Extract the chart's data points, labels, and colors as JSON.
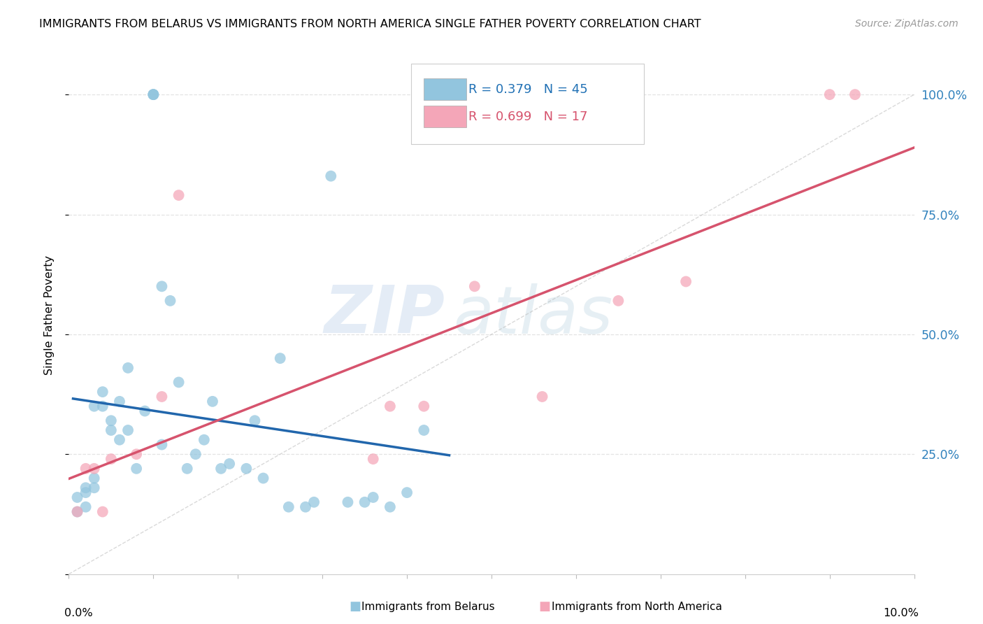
{
  "title": "IMMIGRANTS FROM BELARUS VS IMMIGRANTS FROM NORTH AMERICA SINGLE FATHER POVERTY CORRELATION CHART",
  "source": "Source: ZipAtlas.com",
  "ylabel": "Single Father Poverty",
  "watermark_zip": "ZIP",
  "watermark_atlas": "atlas",
  "legend_blue_r": "R = 0.379",
  "legend_blue_n": "N = 45",
  "legend_pink_r": "R = 0.699",
  "legend_pink_n": "N = 17",
  "blue_color": "#92c5de",
  "pink_color": "#f4a6b8",
  "blue_line_color": "#2166ac",
  "pink_line_color": "#d6536d",
  "background_color": "#ffffff",
  "grid_color": "#e0e0e0",
  "blue_points_x": [
    0.001,
    0.001,
    0.002,
    0.002,
    0.002,
    0.003,
    0.003,
    0.003,
    0.004,
    0.004,
    0.005,
    0.005,
    0.006,
    0.006,
    0.007,
    0.007,
    0.008,
    0.009,
    0.01,
    0.01,
    0.01,
    0.011,
    0.011,
    0.012,
    0.013,
    0.014,
    0.015,
    0.016,
    0.017,
    0.018,
    0.019,
    0.021,
    0.022,
    0.023,
    0.025,
    0.026,
    0.028,
    0.029,
    0.031,
    0.033,
    0.035,
    0.036,
    0.038,
    0.04,
    0.042
  ],
  "blue_points_y": [
    0.16,
    0.13,
    0.17,
    0.14,
    0.18,
    0.18,
    0.2,
    0.35,
    0.35,
    0.38,
    0.32,
    0.3,
    0.28,
    0.36,
    0.3,
    0.43,
    0.22,
    0.34,
    1.0,
    1.0,
    1.0,
    0.6,
    0.27,
    0.57,
    0.4,
    0.22,
    0.25,
    0.28,
    0.36,
    0.22,
    0.23,
    0.22,
    0.32,
    0.2,
    0.45,
    0.14,
    0.14,
    0.15,
    0.83,
    0.15,
    0.15,
    0.16,
    0.14,
    0.17,
    0.3
  ],
  "pink_points_x": [
    0.001,
    0.002,
    0.003,
    0.004,
    0.005,
    0.008,
    0.011,
    0.013,
    0.036,
    0.038,
    0.042,
    0.048,
    0.056,
    0.065,
    0.073,
    0.09,
    0.093
  ],
  "pink_points_y": [
    0.13,
    0.22,
    0.22,
    0.13,
    0.24,
    0.25,
    0.37,
    0.79,
    0.24,
    0.35,
    0.35,
    0.6,
    0.37,
    0.57,
    0.61,
    1.0,
    1.0
  ],
  "xlim": [
    0.0,
    0.1
  ],
  "ylim": [
    0.0,
    1.08
  ],
  "blue_line_x": [
    0.0005,
    0.045
  ],
  "pink_line_x": [
    0.0,
    0.1
  ],
  "right_yticks": [
    0.0,
    0.25,
    0.5,
    0.75,
    1.0
  ],
  "right_yticklabels": [
    "",
    "25.0%",
    "50.0%",
    "75.0%",
    "100.0%"
  ]
}
